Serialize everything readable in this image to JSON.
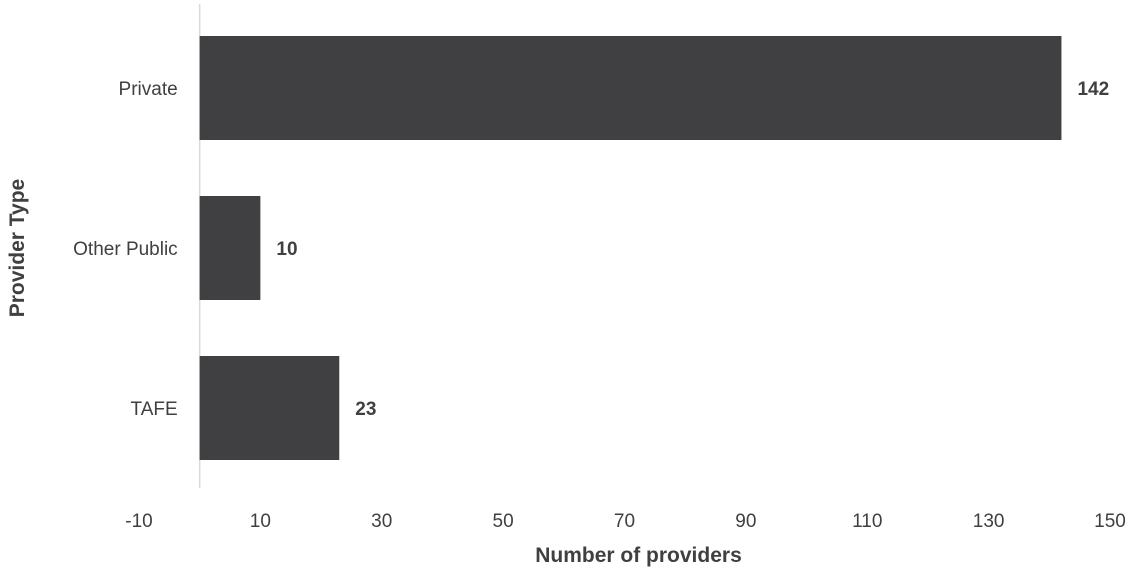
{
  "chart_data": {
    "type": "bar",
    "orientation": "horizontal",
    "categories": [
      "Private",
      "Other Public",
      "TAFE"
    ],
    "values": [
      142,
      10,
      23
    ],
    "xlabel": "Number of providers",
    "ylabel": "Provider Type",
    "xlim": [
      -10,
      150
    ],
    "xticks": [
      -10,
      10,
      30,
      50,
      70,
      90,
      110,
      130,
      150
    ],
    "grid": false,
    "legend": "none",
    "colors": {
      "bar": "#404043",
      "axis": "#d9d9d9",
      "text": "#404040"
    }
  }
}
